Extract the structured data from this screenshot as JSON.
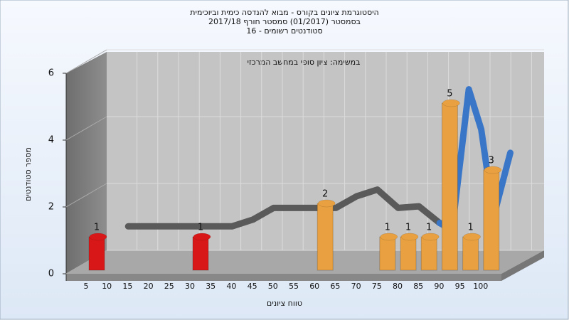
{
  "chart_data": {
    "type": "bar3d",
    "title": "היסטוגרמת ציונים בקורס - מבוא להנדסה כימית וביוכימית",
    "title_line2": "בסמסטר  (01/2017)  סמסטר חורף 2017/18",
    "title_line3": "סטודנטים רשומים - 16",
    "subtitle": "במשימה: ציון סופי במחשב המרכזי",
    "x_label": "טווח ציונים",
    "y_label": "מספר סטודנטים",
    "categories": [
      5,
      10,
      15,
      20,
      25,
      30,
      35,
      40,
      45,
      50,
      55,
      60,
      65,
      70,
      75,
      80,
      85,
      90,
      95,
      100
    ],
    "values": [
      1,
      0,
      0,
      0,
      0,
      1,
      0,
      0,
      0,
      0,
      0,
      2,
      0,
      0,
      1,
      1,
      1,
      5,
      1,
      3
    ],
    "colors": [
      "#d81818",
      "#d81818",
      "#d81818",
      "#d81818",
      "#d81818",
      "#d81818",
      "#d81818",
      "#d81818",
      "#d81818",
      "#d81818",
      "#e8a040",
      "#e8a040",
      "#e8a040",
      "#e8a040",
      "#e8a040",
      "#e8a040",
      "#e8a040",
      "#e8a040",
      "#e8a040",
      "#e8a040"
    ],
    "ylim": [
      0,
      6
    ],
    "yticks": [
      0,
      2,
      4,
      6
    ],
    "grid": true,
    "ribbons": [
      {
        "color": "#5a5a5a",
        "x": [
          10,
          35,
          40,
          45,
          55,
          60,
          65,
          70,
          75,
          80,
          85,
          88
        ],
        "values": [
          1.1,
          1.1,
          1.3,
          1.65,
          1.65,
          1.65,
          2.0,
          2.2,
          1.65,
          1.7,
          1.2,
          1.1
        ]
      },
      {
        "color": "#3a76c8",
        "x": [
          85,
          88,
          92,
          95,
          98,
          102
        ],
        "values": [
          1.2,
          1.0,
          5.2,
          4.0,
          1.4,
          3.3
        ]
      }
    ]
  }
}
